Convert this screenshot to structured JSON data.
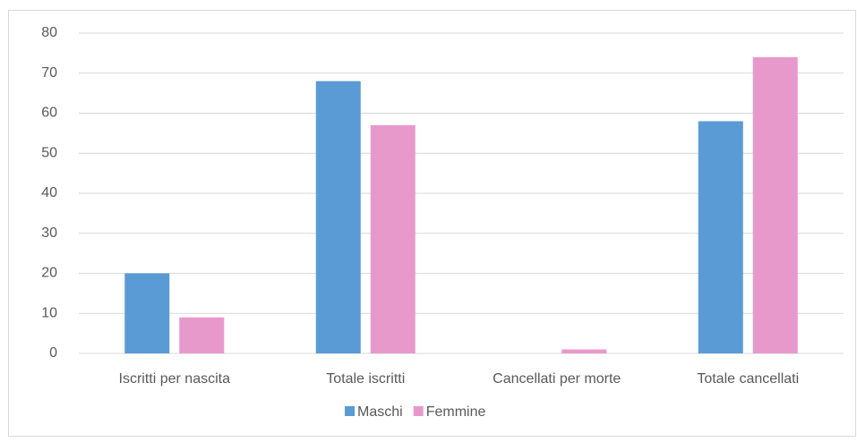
{
  "chart_data": {
    "type": "bar",
    "categories": [
      "Iscritti per nascita",
      "Totale iscritti",
      "Cancellati per morte",
      "Totale cancellati"
    ],
    "series": [
      {
        "name": "Maschi",
        "color": "#5b9bd5",
        "values": [
          20,
          68,
          0,
          58
        ]
      },
      {
        "name": "Femmine",
        "color": "#e899cc",
        "values": [
          9,
          57,
          1,
          74
        ]
      }
    ],
    "ylim": [
      0,
      80
    ],
    "yticks": [
      0,
      10,
      20,
      30,
      40,
      50,
      60,
      70,
      80
    ],
    "grid": true,
    "legend": "bottom"
  }
}
